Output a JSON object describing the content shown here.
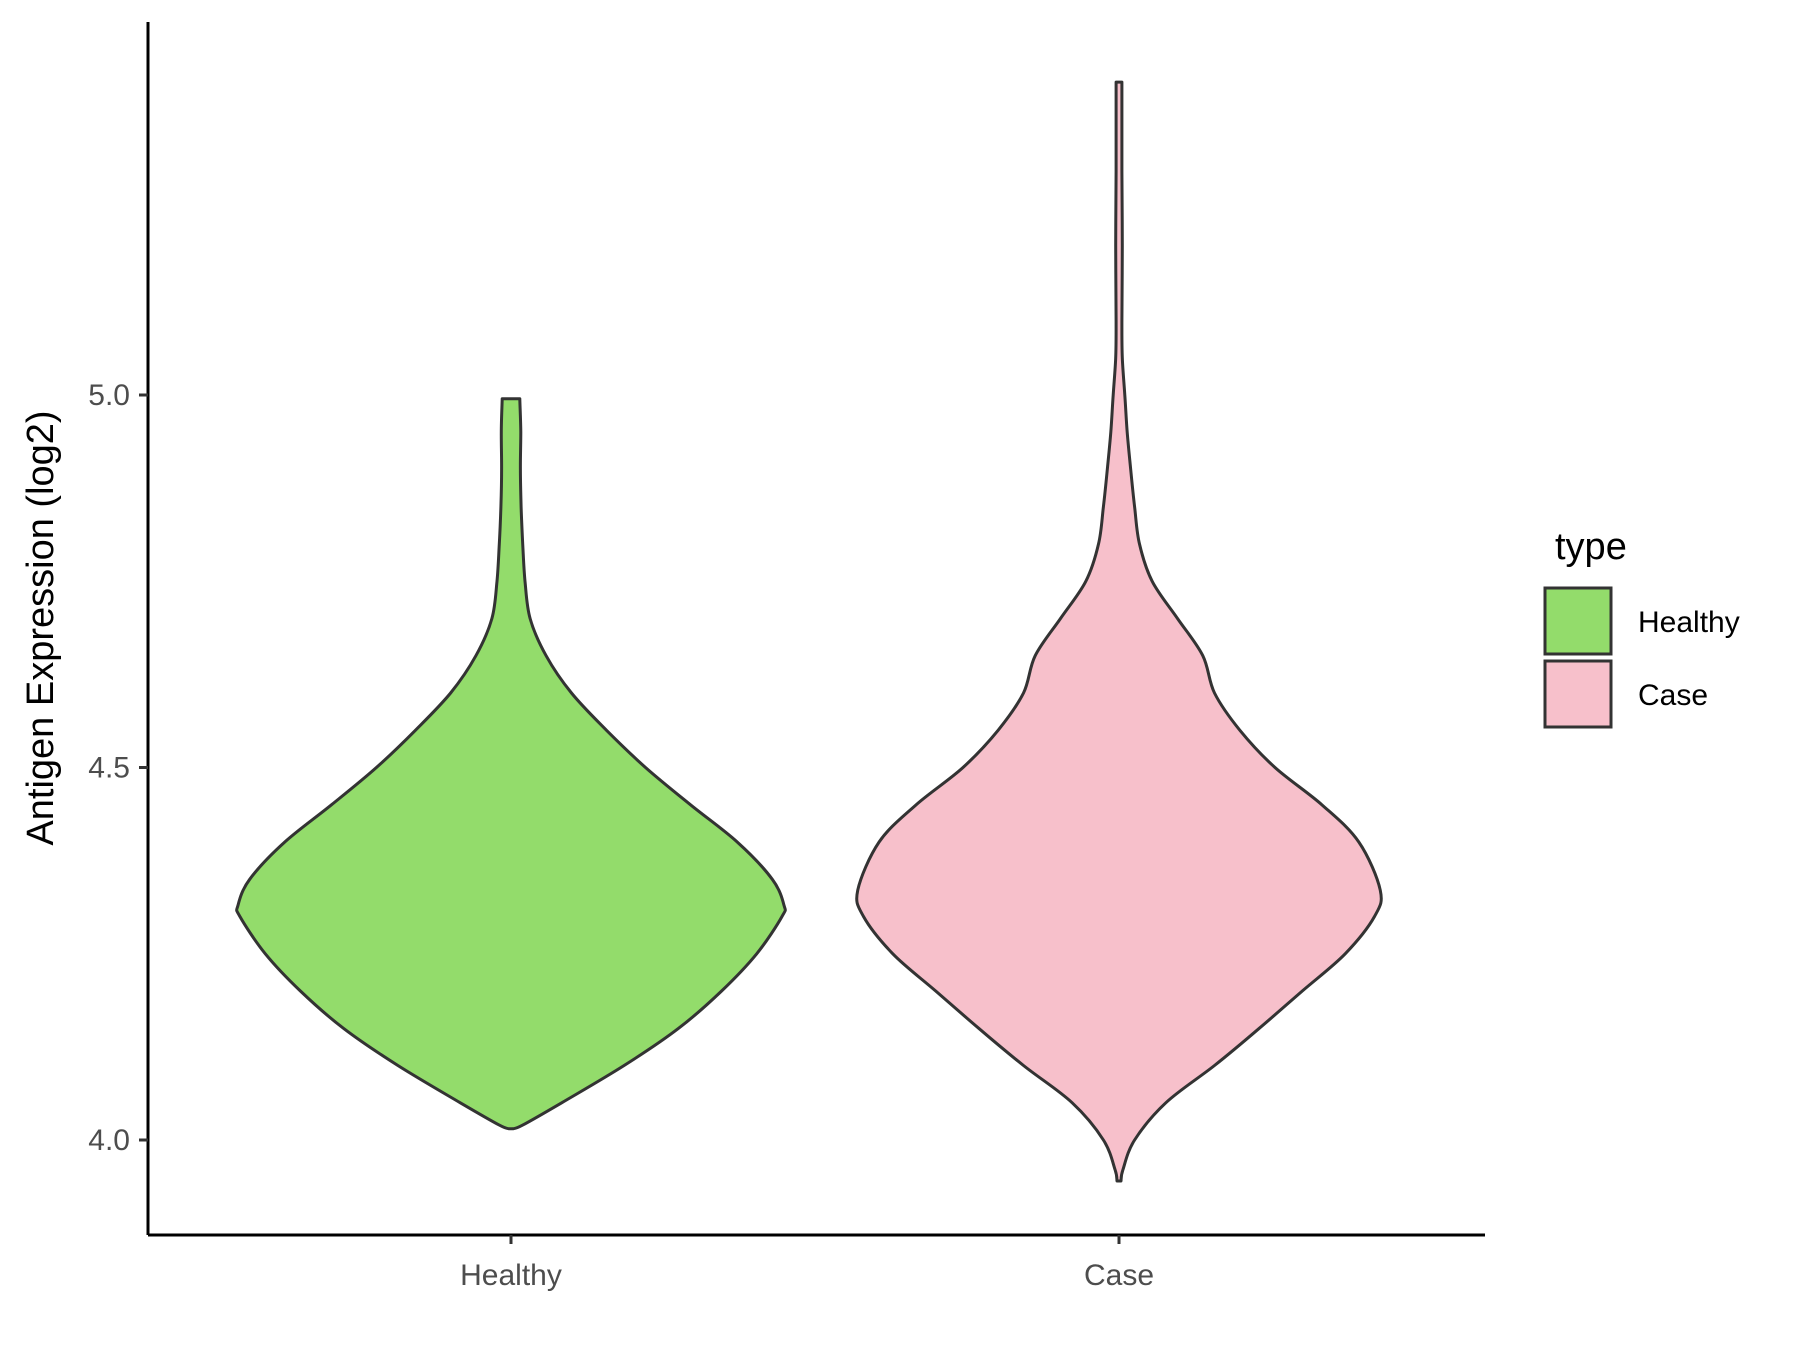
{
  "chart_data": {
    "type": "violin",
    "ylabel": "Antigen Expression (log2)",
    "y_ticks": [
      "4.0",
      "4.5",
      "5.0"
    ],
    "y_tick_values": [
      4.0,
      4.5,
      5.0
    ],
    "ylim": [
      3.87,
      5.49
    ],
    "categories": [
      "Healthy",
      "Case"
    ],
    "legend": {
      "title": "type",
      "placement": "right",
      "entries": [
        "Healthy",
        "Case"
      ]
    },
    "colors": {
      "Healthy": "#93dc6b",
      "Case": "#f7c0cb",
      "outline": "#333333"
    },
    "series": [
      {
        "name": "Healthy",
        "min": 4.015,
        "max": 4.995,
        "max_density_at": 4.315,
        "profile": [
          [
            4.015,
            0.1
          ],
          [
            4.02,
            0.6
          ],
          [
            4.05,
            2.6
          ],
          [
            4.1,
            5.8
          ],
          [
            4.15,
            8.6
          ],
          [
            4.2,
            10.8
          ],
          [
            4.25,
            12.6
          ],
          [
            4.3,
            13.9
          ],
          [
            4.315,
            14.0
          ],
          [
            4.35,
            13.4
          ],
          [
            4.4,
            11.6
          ],
          [
            4.45,
            9.2
          ],
          [
            4.5,
            6.9
          ],
          [
            4.55,
            4.9
          ],
          [
            4.6,
            3.1
          ],
          [
            4.65,
            1.8
          ],
          [
            4.7,
            0.98
          ],
          [
            4.75,
            0.72
          ],
          [
            4.8,
            0.6
          ],
          [
            4.85,
            0.52
          ],
          [
            4.9,
            0.48
          ],
          [
            4.95,
            0.5
          ],
          [
            4.995,
            0.45
          ]
        ]
      },
      {
        "name": "Case",
        "min": 3.945,
        "max": 5.42,
        "max_density_at": 4.335,
        "profile": [
          [
            3.945,
            0.1
          ],
          [
            3.96,
            0.2
          ],
          [
            4.0,
            0.8
          ],
          [
            4.05,
            2.4
          ],
          [
            4.1,
            4.9
          ],
          [
            4.15,
            7.2
          ],
          [
            4.2,
            9.4
          ],
          [
            4.25,
            11.6
          ],
          [
            4.3,
            13.1
          ],
          [
            4.335,
            13.4
          ],
          [
            4.4,
            12.3
          ],
          [
            4.45,
            10.4
          ],
          [
            4.5,
            8.0
          ],
          [
            4.55,
            6.2
          ],
          [
            4.6,
            4.9
          ],
          [
            4.65,
            4.3
          ],
          [
            4.7,
            3.0
          ],
          [
            4.75,
            1.7
          ],
          [
            4.8,
            1.05
          ],
          [
            4.85,
            0.8
          ],
          [
            4.9,
            0.6
          ],
          [
            4.95,
            0.42
          ],
          [
            5.0,
            0.3
          ],
          [
            5.05,
            0.17
          ],
          [
            5.1,
            0.15
          ],
          [
            5.2,
            0.17
          ],
          [
            5.3,
            0.15
          ],
          [
            5.42,
            0.15
          ]
        ]
      }
    ]
  }
}
